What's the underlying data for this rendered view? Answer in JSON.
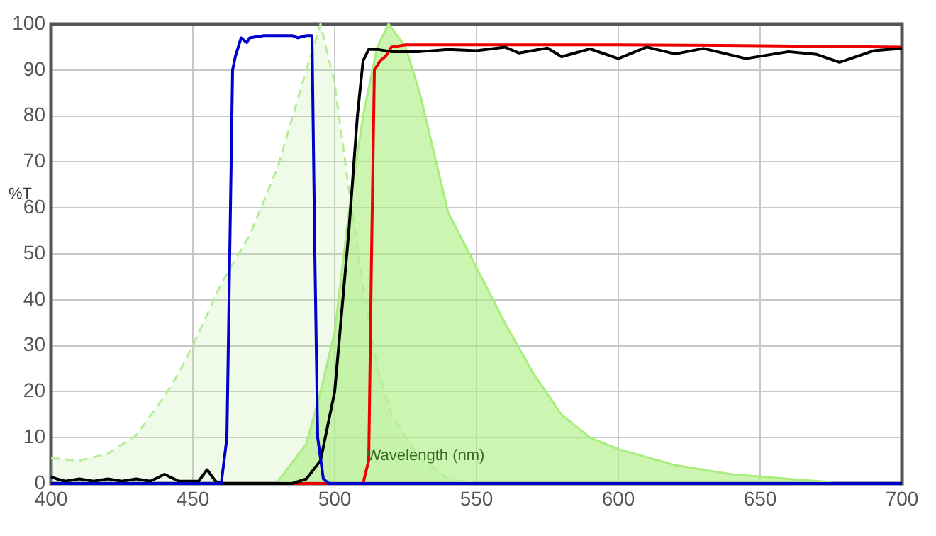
{
  "chart_data": {
    "type": "line",
    "xlabel": "Wavelength (nm)",
    "ylabel": "%T",
    "xlim": [
      400,
      700
    ],
    "xticks": [
      400,
      450,
      500,
      550,
      600,
      650,
      700
    ],
    "ylim": [
      0,
      100
    ],
    "yticks": [
      0,
      10,
      20,
      30,
      40,
      50,
      60,
      70,
      80,
      90,
      100
    ],
    "grid": true,
    "legend": false,
    "marker": "none",
    "series": [
      {
        "type": "area",
        "line_style": "dashed",
        "color": "#b4ef98",
        "x": [
          400,
          410,
          420,
          430,
          440,
          445,
          450,
          460,
          470,
          480,
          490,
          495,
          500,
          505,
          510,
          515,
          520,
          530,
          540,
          550
        ],
        "values": [
          5.5,
          5,
          6.5,
          10.5,
          19,
          24,
          30,
          43.5,
          54,
          69,
          90,
          100,
          87,
          64,
          43,
          25,
          15,
          5.5,
          1,
          0
        ]
      },
      {
        "type": "area",
        "line_style": "solid",
        "color": "#a8ee7c",
        "x": [
          480,
          490,
          495,
          500,
          505,
          510,
          515,
          519,
          525,
          530,
          540,
          550,
          560,
          570,
          580,
          590,
          600,
          620,
          640,
          660,
          675
        ],
        "values": [
          0.5,
          8.6,
          20,
          33,
          59,
          80,
          95,
          100,
          95,
          85,
          59,
          47,
          35,
          24,
          15,
          10,
          7.5,
          4,
          2,
          1,
          0.3
        ]
      },
      {
        "type": "line",
        "line_style": "solid",
        "color": "#0000cc",
        "x": [
          400,
          460,
          462,
          464,
          465,
          467,
          469,
          470,
          475,
          480,
          485,
          487,
          490,
          492,
          493,
          494,
          496,
          498,
          700
        ],
        "values": [
          0,
          0,
          10,
          90,
          93,
          97,
          96,
          97,
          97.5,
          97.5,
          97.5,
          97,
          97.5,
          97.5,
          50,
          10,
          1,
          0,
          0
        ]
      },
      {
        "type": "line",
        "line_style": "solid",
        "color": "#000000",
        "x": [
          400,
          402,
          405,
          410,
          415,
          420,
          425,
          430,
          435,
          440,
          445,
          452,
          455,
          458,
          460,
          485,
          490,
          495,
          500,
          505,
          508,
          510,
          512,
          515,
          520,
          530,
          540,
          550,
          560,
          565,
          575,
          580,
          590,
          600,
          610,
          620,
          630,
          645,
          660,
          670,
          678,
          690,
          700
        ],
        "values": [
          1.5,
          1,
          0.5,
          1,
          0.5,
          1,
          0.5,
          1,
          0.5,
          2,
          0.5,
          0.5,
          3,
          0.5,
          0,
          0,
          1,
          5,
          20,
          55,
          80,
          92,
          94.5,
          94.5,
          94,
          94,
          94.5,
          94.2,
          95,
          93.7,
          94.8,
          92.9,
          94.6,
          92.5,
          95,
          93.5,
          94.7,
          92.5,
          94,
          93.4,
          91.7,
          94.2,
          94.7
        ]
      },
      {
        "type": "line",
        "line_style": "solid",
        "color": "#ee0000",
        "x": [
          400,
          510,
          512,
          513,
          514,
          516,
          518,
          520,
          525,
          550,
          600,
          650,
          700
        ],
        "values": [
          0,
          0,
          5,
          50,
          90,
          92,
          93,
          95,
          95.5,
          95.5,
          95.5,
          95.3,
          95
        ]
      }
    ]
  }
}
